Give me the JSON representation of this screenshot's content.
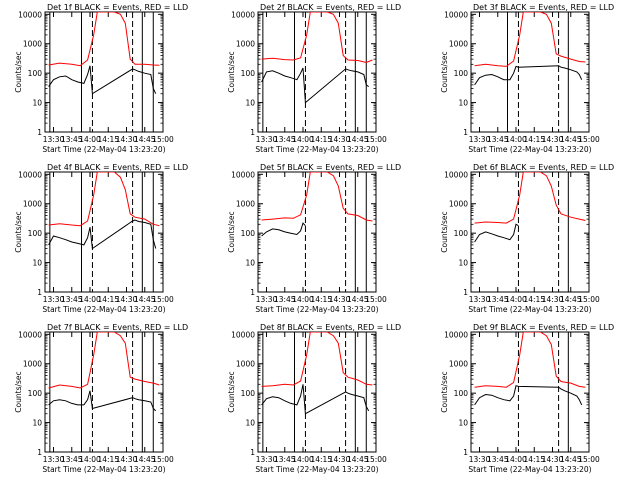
{
  "figure": {
    "rows": 3,
    "cols": 3,
    "colors": {
      "events": "#000000",
      "lld": "#ff0000",
      "axes": "#000000",
      "background": "#ffffff"
    }
  },
  "chart_data": [
    {
      "type": "line",
      "title": "Det 1f BLACK = Events, RED = LLD",
      "xlabel": "Start Time (22-May-04 13:23:20)",
      "ylabel": "Counts/sec",
      "xlim": [
        "13:23",
        "15:00"
      ],
      "xticks": [
        "13:30",
        "13:45",
        "14:00",
        "14:15",
        "14:30",
        "14:45",
        "15:00"
      ],
      "ylim": [
        1,
        12000
      ],
      "yscale": "log",
      "yticks": [
        "1",
        "10",
        "100",
        "1000",
        "10000"
      ],
      "solid_vlines": [
        "13:27",
        "13:53",
        "14:43",
        "14:52"
      ],
      "dashed_vlines": [
        "14:02",
        "14:35"
      ],
      "series": [
        {
          "name": "LLD",
          "color": "#ff0000",
          "x": [
            "13:26",
            "13:35",
            "13:45",
            "13:52",
            "13:58",
            "14:03",
            "14:06",
            "14:10",
            "14:20",
            "14:25",
            "14:29",
            "14:33",
            "14:37",
            "14:45",
            "14:52",
            "14:57"
          ],
          "y": [
            190,
            220,
            200,
            180,
            280,
            2000,
            12000,
            12000,
            12000,
            10000,
            5000,
            300,
            200,
            200,
            190,
            185
          ]
        },
        {
          "name": "Events",
          "color": "#000000",
          "x": [
            "13:26",
            "13:30",
            "13:35",
            "13:40",
            "13:45",
            "13:50",
            "13:55",
            "13:58",
            "14:00",
            "14:02",
            "14:35",
            "14:37",
            "14:40",
            "14:45",
            "14:50",
            "14:52",
            "14:54"
          ],
          "y": [
            35,
            60,
            75,
            80,
            60,
            50,
            45,
            90,
            180,
            20,
            140,
            130,
            115,
            100,
            90,
            30,
            20
          ]
        }
      ]
    },
    {
      "type": "line",
      "title": "Det 2f BLACK = Events, RED = LLD",
      "xlabel": "Start Time (22-May-04 13:23:20)",
      "ylabel": "Counts/sec",
      "xlim": [
        "13:23",
        "15:00"
      ],
      "xticks": [
        "13:30",
        "13:45",
        "14:00",
        "14:15",
        "14:30",
        "14:45",
        "15:00"
      ],
      "ylim": [
        1,
        12000
      ],
      "yscale": "log",
      "yticks": [
        "1",
        "10",
        "100",
        "1000",
        "10000"
      ],
      "solid_vlines": [
        "13:27",
        "13:53",
        "14:43",
        "14:52"
      ],
      "dashed_vlines": [
        "14:02",
        "14:35"
      ],
      "series": [
        {
          "name": "LLD",
          "color": "#ff0000",
          "x": [
            "13:26",
            "13:35",
            "13:45",
            "13:52",
            "13:58",
            "14:03",
            "14:06",
            "14:10",
            "14:20",
            "14:25",
            "14:29",
            "14:33",
            "14:37",
            "14:45",
            "14:52",
            "14:57"
          ],
          "y": [
            300,
            320,
            290,
            280,
            330,
            2000,
            12000,
            12000,
            12000,
            10000,
            5000,
            400,
            280,
            270,
            230,
            280
          ]
        },
        {
          "name": "Events",
          "color": "#000000",
          "x": [
            "13:26",
            "13:30",
            "13:35",
            "13:40",
            "13:45",
            "13:50",
            "13:55",
            "13:58",
            "14:00",
            "14:02",
            "14:35",
            "14:37",
            "14:40",
            "14:45",
            "14:50",
            "14:52",
            "14:54"
          ],
          "y": [
            50,
            110,
            120,
            100,
            80,
            70,
            60,
            100,
            150,
            10,
            140,
            130,
            120,
            110,
            90,
            40,
            35
          ]
        }
      ]
    },
    {
      "type": "line",
      "title": "Det 3f BLACK = Events, RED = LLD",
      "xlabel": "Start Time (22-May-04 13:23:20)",
      "ylabel": "Counts/sec",
      "xlim": [
        "13:23",
        "15:00"
      ],
      "xticks": [
        "13:30",
        "13:45",
        "14:00",
        "14:15",
        "14:30",
        "14:45",
        "15:00"
      ],
      "ylim": [
        1,
        12000
      ],
      "yscale": "log",
      "yticks": [
        "1",
        "10",
        "100",
        "1000",
        "10000"
      ],
      "solid_vlines": [
        "13:53",
        "14:43"
      ],
      "dashed_vlines": [
        "14:02",
        "14:35"
      ],
      "series": [
        {
          "name": "LLD",
          "color": "#ff0000",
          "x": [
            "13:26",
            "13:35",
            "13:45",
            "13:52",
            "13:58",
            "14:03",
            "14:06",
            "14:10",
            "14:20",
            "14:25",
            "14:29",
            "14:33",
            "14:37",
            "14:45",
            "14:52",
            "14:57"
          ],
          "y": [
            180,
            200,
            180,
            170,
            260,
            2000,
            12000,
            12000,
            12000,
            10000,
            5000,
            450,
            380,
            300,
            250,
            240
          ]
        },
        {
          "name": "Events",
          "color": "#000000",
          "x": [
            "13:26",
            "13:30",
            "13:35",
            "13:40",
            "13:45",
            "13:50",
            "13:55",
            "13:58",
            "14:00",
            "14:02",
            "14:35",
            "14:37",
            "14:40",
            "14:45",
            "14:50",
            "14:52",
            "14:54"
          ],
          "y": [
            40,
            70,
            85,
            90,
            75,
            60,
            60,
            100,
            170,
            160,
            180,
            160,
            150,
            130,
            110,
            90,
            60
          ]
        }
      ]
    },
    {
      "type": "line",
      "title": "Det 4f BLACK = Events, RED = LLD",
      "xlabel": "Start Time (22-May-04 13:23:20)",
      "ylabel": "Counts/sec",
      "xlim": [
        "13:23",
        "15:00"
      ],
      "xticks": [
        "13:30",
        "13:45",
        "14:00",
        "14:15",
        "14:30",
        "14:45",
        "15:00"
      ],
      "ylim": [
        1,
        12000
      ],
      "yscale": "log",
      "yticks": [
        "1",
        "10",
        "100",
        "1000",
        "10000"
      ],
      "solid_vlines": [
        "13:27",
        "13:53",
        "14:43",
        "14:52"
      ],
      "dashed_vlines": [
        "14:02",
        "14:35"
      ],
      "series": [
        {
          "name": "LLD",
          "color": "#ff0000",
          "x": [
            "13:26",
            "13:35",
            "13:45",
            "13:52",
            "13:58",
            "14:03",
            "14:06",
            "14:10",
            "14:20",
            "14:25",
            "14:29",
            "14:33",
            "14:37",
            "14:45",
            "14:52",
            "14:57"
          ],
          "y": [
            190,
            210,
            190,
            180,
            260,
            2000,
            12000,
            12000,
            12000,
            8000,
            3000,
            450,
            350,
            300,
            200,
            180
          ]
        },
        {
          "name": "Events",
          "color": "#000000",
          "x": [
            "13:26",
            "13:30",
            "13:35",
            "13:40",
            "13:45",
            "13:50",
            "13:55",
            "13:58",
            "14:00",
            "14:02",
            "14:35",
            "14:37",
            "14:40",
            "14:45",
            "14:50",
            "14:52",
            "14:54"
          ],
          "y": [
            40,
            80,
            70,
            60,
            50,
            45,
            40,
            70,
            160,
            30,
            260,
            280,
            250,
            230,
            200,
            60,
            30
          ]
        }
      ]
    },
    {
      "type": "line",
      "title": "Det 5f BLACK = Events, RED = LLD",
      "xlabel": "Start Time (22-May-04 13:23:20)",
      "ylabel": "Counts/sec",
      "xlim": [
        "13:23",
        "15:00"
      ],
      "xticks": [
        "13:30",
        "13:45",
        "14:00",
        "14:15",
        "14:30",
        "14:45",
        "15:00"
      ],
      "ylim": [
        1,
        12000
      ],
      "yscale": "log",
      "yticks": [
        "1",
        "10",
        "100",
        "1000",
        "10000"
      ],
      "solid_vlines": [
        "14:43",
        "14:52"
      ],
      "dashed_vlines": [
        "14:02",
        "14:35"
      ],
      "series": [
        {
          "name": "LLD",
          "color": "#ff0000",
          "x": [
            "13:26",
            "13:35",
            "13:45",
            "13:52",
            "13:58",
            "14:03",
            "14:06",
            "14:10",
            "14:20",
            "14:25",
            "14:29",
            "14:33",
            "14:37",
            "14:45",
            "14:52",
            "14:57"
          ],
          "y": [
            280,
            300,
            330,
            320,
            420,
            2000,
            12000,
            12000,
            12000,
            9000,
            4000,
            700,
            450,
            400,
            280,
            260
          ]
        },
        {
          "name": "Events",
          "color": "#000000",
          "x": [
            "13:26",
            "13:30",
            "13:35",
            "13:40",
            "13:45",
            "13:50",
            "13:55",
            "13:58",
            "14:00",
            "14:02"
          ],
          "y": [
            80,
            110,
            140,
            130,
            110,
            100,
            90,
            120,
            220,
            180
          ]
        }
      ]
    },
    {
      "type": "line",
      "title": "Det 6f BLACK = Events, RED = LLD",
      "xlabel": "Start Time (22-May-04 13:23:20)",
      "ylabel": "Counts/sec",
      "xlim": [
        "13:23",
        "15:00"
      ],
      "xticks": [
        "13:30",
        "13:45",
        "14:00",
        "14:15",
        "14:30",
        "14:45",
        "15:00"
      ],
      "ylim": [
        1,
        12000
      ],
      "yscale": "log",
      "yticks": [
        "1",
        "10",
        "100",
        "1000",
        "10000"
      ],
      "solid_vlines": [
        "14:43"
      ],
      "dashed_vlines": [
        "14:02",
        "14:35"
      ],
      "series": [
        {
          "name": "LLD",
          "color": "#ff0000",
          "x": [
            "13:26",
            "13:35",
            "13:45",
            "13:52",
            "13:58",
            "14:03",
            "14:06",
            "14:10",
            "14:20",
            "14:25",
            "14:29",
            "14:33",
            "14:37",
            "14:45",
            "14:52",
            "14:57"
          ],
          "y": [
            220,
            240,
            230,
            220,
            300,
            2000,
            12000,
            12000,
            12000,
            9000,
            4000,
            900,
            450,
            350,
            300,
            270
          ]
        },
        {
          "name": "Events",
          "color": "#000000",
          "x": [
            "13:26",
            "13:30",
            "13:35",
            "13:40",
            "13:45",
            "13:50",
            "13:55",
            "13:58",
            "14:00",
            "14:02"
          ],
          "y": [
            50,
            90,
            110,
            95,
            80,
            70,
            60,
            90,
            200,
            180
          ]
        }
      ]
    },
    {
      "type": "line",
      "title": "Det 7f BLACK = Events, RED = LLD",
      "xlabel": "Start Time (22-May-04 13:23:20)",
      "ylabel": "Counts/sec",
      "xlim": [
        "13:23",
        "15:00"
      ],
      "xticks": [
        "13:30",
        "13:45",
        "14:00",
        "14:15",
        "14:30",
        "14:45",
        "15:00"
      ],
      "ylim": [
        1,
        12000
      ],
      "yscale": "log",
      "yticks": [
        "1",
        "10",
        "100",
        "1000",
        "10000"
      ],
      "solid_vlines": [
        "13:27",
        "13:53",
        "14:43",
        "14:52"
      ],
      "dashed_vlines": [
        "14:02",
        "14:35"
      ],
      "series": [
        {
          "name": "LLD",
          "color": "#ff0000",
          "x": [
            "13:26",
            "13:35",
            "13:45",
            "13:52",
            "13:58",
            "14:03",
            "14:06",
            "14:10",
            "14:20",
            "14:25",
            "14:29",
            "14:33",
            "14:37",
            "14:45",
            "14:52",
            "14:57"
          ],
          "y": [
            150,
            190,
            170,
            150,
            200,
            2000,
            12000,
            12000,
            12000,
            9000,
            5000,
            350,
            300,
            250,
            220,
            190
          ]
        },
        {
          "name": "Events",
          "color": "#000000",
          "x": [
            "13:26",
            "13:30",
            "13:35",
            "13:40",
            "13:45",
            "13:50",
            "13:55",
            "13:58",
            "14:00",
            "14:02",
            "14:35",
            "14:37",
            "14:40",
            "14:45",
            "14:50",
            "14:52",
            "14:54"
          ],
          "y": [
            40,
            55,
            60,
            55,
            45,
            40,
            40,
            60,
            120,
            30,
            70,
            65,
            60,
            55,
            50,
            30,
            25
          ]
        }
      ]
    },
    {
      "type": "line",
      "title": "Det 8f BLACK = Events, RED = LLD",
      "xlabel": "Start Time (22-May-04 13:23:20)",
      "ylabel": "Counts/sec",
      "xlim": [
        "13:23",
        "15:00"
      ],
      "xticks": [
        "13:30",
        "13:45",
        "14:00",
        "14:15",
        "14:30",
        "14:45",
        "15:00"
      ],
      "ylim": [
        1,
        12000
      ],
      "yscale": "log",
      "yticks": [
        "1",
        "10",
        "100",
        "1000",
        "10000"
      ],
      "solid_vlines": [
        "13:27",
        "13:53",
        "14:43",
        "14:52"
      ],
      "dashed_vlines": [
        "14:02",
        "14:35"
      ],
      "series": [
        {
          "name": "LLD",
          "color": "#ff0000",
          "x": [
            "13:26",
            "13:35",
            "13:45",
            "13:52",
            "13:58",
            "14:03",
            "14:06",
            "14:10",
            "14:20",
            "14:25",
            "14:29",
            "14:33",
            "14:37",
            "14:45",
            "14:52",
            "14:57"
          ],
          "y": [
            170,
            180,
            200,
            190,
            260,
            2000,
            12000,
            12000,
            12000,
            9000,
            5000,
            500,
            350,
            280,
            200,
            190
          ]
        },
        {
          "name": "Events",
          "color": "#000000",
          "x": [
            "13:26",
            "13:30",
            "13:35",
            "13:40",
            "13:45",
            "13:50",
            "13:55",
            "13:58",
            "14:00",
            "14:02",
            "14:35",
            "14:37",
            "14:40",
            "14:45",
            "14:50",
            "14:52",
            "14:54"
          ],
          "y": [
            40,
            65,
            75,
            70,
            55,
            45,
            40,
            80,
            200,
            20,
            110,
            100,
            90,
            80,
            70,
            35,
            25
          ]
        }
      ]
    },
    {
      "type": "line",
      "title": "Det 9f BLACK = Events, RED = LLD",
      "xlabel": "Start Time (22-May-04 13:23:20)",
      "ylabel": "Counts/sec",
      "xlim": [
        "13:23",
        "15:00"
      ],
      "xticks": [
        "13:30",
        "13:45",
        "14:00",
        "14:15",
        "14:30",
        "14:45",
        "15:00"
      ],
      "ylim": [
        1,
        12000
      ],
      "yscale": "log",
      "yticks": [
        "1",
        "10",
        "100",
        "1000",
        "10000"
      ],
      "solid_vlines": [
        "14:43"
      ],
      "dashed_vlines": [
        "14:02",
        "14:35"
      ],
      "series": [
        {
          "name": "LLD",
          "color": "#ff0000",
          "x": [
            "13:26",
            "13:35",
            "13:45",
            "13:52",
            "13:58",
            "14:03",
            "14:06",
            "14:10",
            "14:20",
            "14:25",
            "14:29",
            "14:33",
            "14:37",
            "14:45",
            "14:52",
            "14:57"
          ],
          "y": [
            160,
            180,
            170,
            160,
            230,
            2000,
            12000,
            12000,
            12000,
            9000,
            4500,
            380,
            250,
            220,
            170,
            160
          ]
        },
        {
          "name": "Events",
          "color": "#000000",
          "x": [
            "13:26",
            "13:30",
            "13:35",
            "13:40",
            "13:45",
            "13:50",
            "13:55",
            "13:58",
            "14:00",
            "14:02",
            "14:35",
            "14:37",
            "14:40",
            "14:45",
            "14:50",
            "14:52",
            "14:54"
          ],
          "y": [
            40,
            70,
            90,
            85,
            70,
            60,
            55,
            80,
            180,
            170,
            160,
            140,
            120,
            100,
            80,
            60,
            40
          ]
        }
      ]
    }
  ]
}
